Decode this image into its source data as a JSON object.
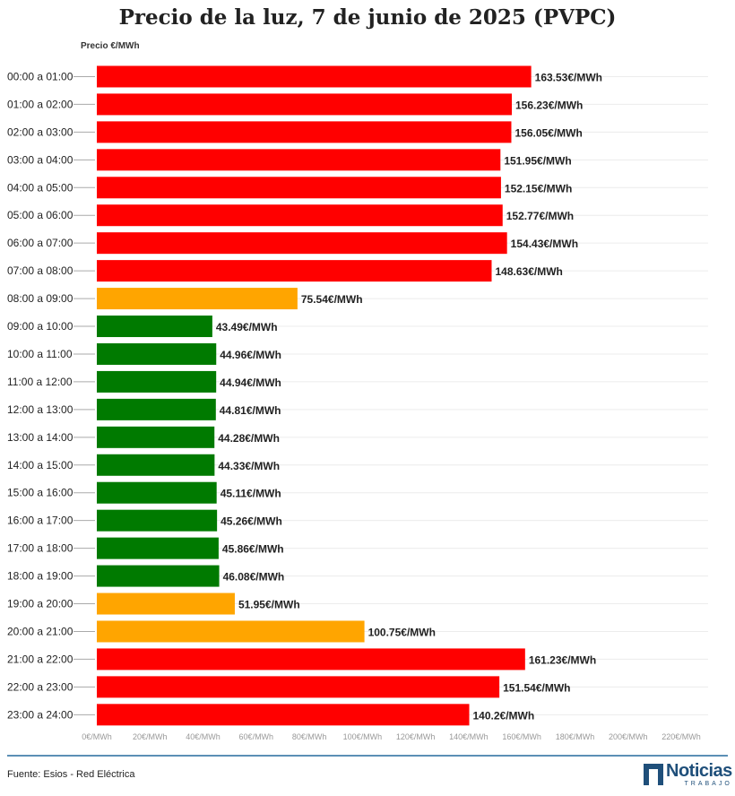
{
  "header": {
    "title": "Precio de la luz, 7 de junio de 2025 (PVPC)",
    "axis_caption": "Precio €/MWh"
  },
  "footer": {
    "source": "Fuente: Esios - Red Eléctrica",
    "logo_name": "Noticias",
    "logo_sub": "TRABAJO"
  },
  "chart_data": {
    "type": "bar",
    "orientation": "horizontal",
    "title": "Precio de la luz, 7 de junio de 2025 (PVPC)",
    "xlabel": "",
    "ylabel": "Precio €/MWh",
    "xlim": [
      0,
      220
    ],
    "x_ticks": [
      "0€/MWh",
      "20€/MWh",
      "40€/MWh",
      "60€/MWh",
      "80€/MWh",
      "100€/MWh",
      "120€/MWh",
      "140€/MWh",
      "160€/MWh",
      "180€/MWh",
      "200€/MWh",
      "220€/MWh"
    ],
    "grid": true,
    "categories": [
      "00:00 a 01:00",
      "01:00 a 02:00",
      "02:00 a 03:00",
      "03:00 a 04:00",
      "04:00 a 05:00",
      "05:00 a 06:00",
      "06:00 a 07:00",
      "07:00 a 08:00",
      "08:00 a 09:00",
      "09:00 a 10:00",
      "10:00 a 11:00",
      "11:00 a 12:00",
      "12:00 a 13:00",
      "13:00 a 14:00",
      "14:00 a 15:00",
      "15:00 a 16:00",
      "16:00 a 17:00",
      "17:00 a 18:00",
      "18:00 a 19:00",
      "19:00 a 20:00",
      "20:00 a 21:00",
      "21:00 a 22:00",
      "22:00 a 23:00",
      "23:00 a 24:00"
    ],
    "values": [
      163.53,
      156.23,
      156.05,
      151.95,
      152.15,
      152.77,
      154.43,
      148.63,
      75.54,
      43.49,
      44.96,
      44.94,
      44.81,
      44.28,
      44.33,
      45.11,
      45.26,
      45.86,
      46.08,
      51.95,
      100.75,
      161.23,
      151.54,
      140.2
    ],
    "value_labels": [
      "163.53€/MWh",
      "156.23€/MWh",
      "156.05€/MWh",
      "151.95€/MWh",
      "152.15€/MWh",
      "152.77€/MWh",
      "154.43€/MWh",
      "148.63€/MWh",
      "75.54€/MWh",
      "43.49€/MWh",
      "44.96€/MWh",
      "44.94€/MWh",
      "44.81€/MWh",
      "44.28€/MWh",
      "44.33€/MWh",
      "45.11€/MWh",
      "45.26€/MWh",
      "45.86€/MWh",
      "46.08€/MWh",
      "51.95€/MWh",
      "100.75€/MWh",
      "161.23€/MWh",
      "151.54€/MWh",
      "140.2€/MWh"
    ],
    "bar_colors": [
      "#ff0000",
      "#ff0000",
      "#ff0000",
      "#ff0000",
      "#ff0000",
      "#ff0000",
      "#ff0000",
      "#ff0000",
      "#ffa500",
      "#007a00",
      "#007a00",
      "#007a00",
      "#007a00",
      "#007a00",
      "#007a00",
      "#007a00",
      "#007a00",
      "#007a00",
      "#007a00",
      "#ffa500",
      "#ffa500",
      "#ff0000",
      "#ff0000",
      "#ff0000"
    ]
  }
}
